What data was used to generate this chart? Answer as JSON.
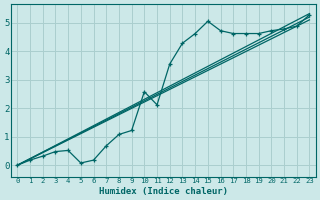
{
  "background_color": "#cce8e8",
  "grid_color": "#aacece",
  "line_color": "#006666",
  "xlabel": "Humidex (Indice chaleur)",
  "xlim": [
    -0.5,
    23.5
  ],
  "ylim": [
    -0.4,
    5.65
  ],
  "yticks": [
    0,
    1,
    2,
    3,
    4,
    5
  ],
  "xticks": [
    0,
    1,
    2,
    3,
    4,
    5,
    6,
    7,
    8,
    9,
    10,
    11,
    12,
    13,
    14,
    15,
    16,
    17,
    18,
    19,
    20,
    21,
    22,
    23
  ],
  "curve1_x": [
    0,
    1,
    2,
    3,
    4,
    5,
    6,
    7,
    8,
    9,
    10,
    11,
    12,
    13,
    14,
    15,
    16,
    17,
    18,
    19,
    20,
    21,
    22,
    23
  ],
  "curve1_y": [
    0.0,
    0.18,
    0.32,
    0.48,
    0.52,
    0.08,
    0.18,
    0.68,
    1.08,
    1.22,
    2.58,
    2.12,
    3.55,
    4.28,
    4.62,
    5.05,
    4.72,
    4.62,
    4.62,
    4.62,
    4.72,
    4.78,
    4.88,
    5.28
  ],
  "line1_x": [
    0,
    23
  ],
  "line1_y": [
    0.0,
    5.32
  ],
  "line2_x": [
    0,
    23
  ],
  "line2_y": [
    0.0,
    5.2
  ],
  "line3_x": [
    0,
    23
  ],
  "line3_y": [
    0.0,
    5.1
  ]
}
